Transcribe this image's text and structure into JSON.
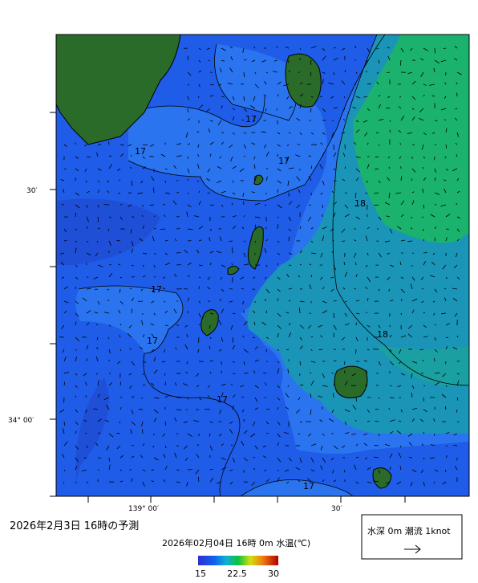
{
  "map": {
    "lat_labels": [
      "30′",
      "34° 00′"
    ],
    "lon_labels": [
      "139° 00′",
      "30′"
    ],
    "contour_labels": [
      "17",
      "17",
      "17",
      "17",
      "17",
      "17",
      "17",
      "18",
      "18"
    ]
  },
  "caption": "2026年2月3日 16時の予測",
  "colorbar": {
    "title": "2026年02月04日 16時 0m 水温(℃)",
    "ticks": [
      15,
      22.5,
      30
    ]
  },
  "legend": {
    "label": "水深 0m 潮流 1knot"
  }
}
